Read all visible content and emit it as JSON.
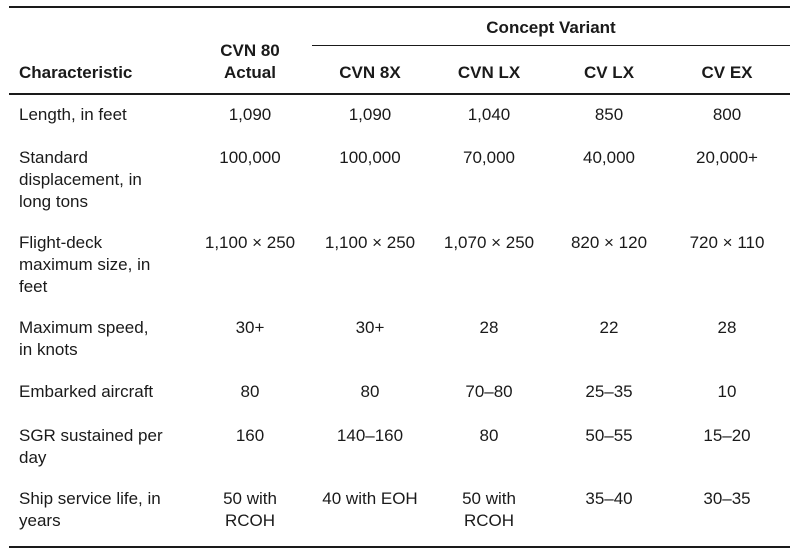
{
  "table": {
    "group_header": "Concept Variant",
    "header_characteristic": "Characteristic",
    "columns": [
      "CVN 80\nActual",
      "CVN 8X",
      "CVN LX",
      "CV LX",
      "CV EX"
    ],
    "rows": [
      {
        "label": "Length, in feet",
        "values": [
          "1,090",
          "1,090",
          "1,040",
          "850",
          "800"
        ]
      },
      {
        "label": "Standard\ndisplacement, in\nlong tons",
        "values": [
          "100,000",
          "100,000",
          "70,000",
          "40,000",
          "20,000+"
        ]
      },
      {
        "label": "Flight-deck\nmaximum size, in\nfeet",
        "values": [
          "1,100 × 250",
          "1,100 × 250",
          "1,070 × 250",
          "820 × 120",
          "720 × 110"
        ]
      },
      {
        "label": "Maximum speed,\nin knots",
        "values": [
          "30+",
          "30+",
          "28",
          "22",
          "28"
        ]
      },
      {
        "label": "Embarked aircraft",
        "values": [
          "80",
          "80",
          "70–80",
          "25–35",
          "10"
        ]
      },
      {
        "label": "SGR sustained per\nday",
        "values": [
          "160",
          "140–160",
          "80",
          "50–55",
          "15–20"
        ]
      },
      {
        "label": "Ship service life, in\nyears",
        "values": [
          "50 with\nRCOH",
          "40 with EOH",
          "50 with\nRCOH",
          "35–40",
          "30–35"
        ]
      }
    ]
  }
}
